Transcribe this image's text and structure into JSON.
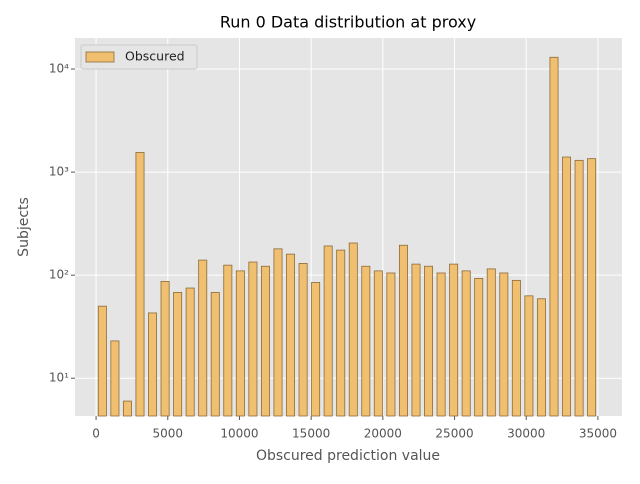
{
  "chart_data": {
    "type": "histogram",
    "title": "Run 0 Data distribution at proxy",
    "x_label": "Obscured prediction value",
    "y_label": "Subjects",
    "bins": [
      0,
      875,
      1750,
      2625,
      3500,
      4375,
      5250,
      6125,
      7000,
      7875,
      8750,
      9625,
      10500,
      11375,
      12250,
      13125,
      14000,
      14875,
      15750,
      16625,
      17500,
      18375,
      19250,
      20125,
      21000,
      21875,
      22750,
      23625,
      24500,
      25375,
      26250,
      27125,
      28000,
      28875,
      29750,
      30625,
      31500,
      32375,
      33250,
      34125,
      35000
    ],
    "series": [
      {
        "name": "Obscured",
        "color": "#f0c070",
        "edgecolor": "#8b6b3a",
        "values": [
          50,
          23,
          6,
          1550,
          43,
          87,
          68,
          75,
          140,
          68,
          125,
          110,
          134,
          122,
          180,
          160,
          130,
          85,
          192,
          175,
          205,
          122,
          110,
          105,
          195,
          128,
          122,
          105,
          128,
          110,
          93,
          115,
          105,
          89,
          63,
          59,
          13000,
          1400,
          1300,
          1350
        ]
      }
    ],
    "xlim": [
      -1470,
      36680
    ],
    "xticks": [
      0,
      5000,
      10000,
      15000,
      20000,
      25000,
      30000,
      35000
    ],
    "ylim": [
      4.3,
      20000
    ],
    "ylog": true,
    "yticks": [
      {
        "value": 10,
        "label": "10¹"
      },
      {
        "value": 100,
        "label": "10²"
      },
      {
        "value": 1000,
        "label": "10³"
      },
      {
        "value": 10000,
        "label": "10⁴"
      }
    ],
    "grid": true,
    "legend": "upper left",
    "bar_width_fraction": 0.65
  }
}
